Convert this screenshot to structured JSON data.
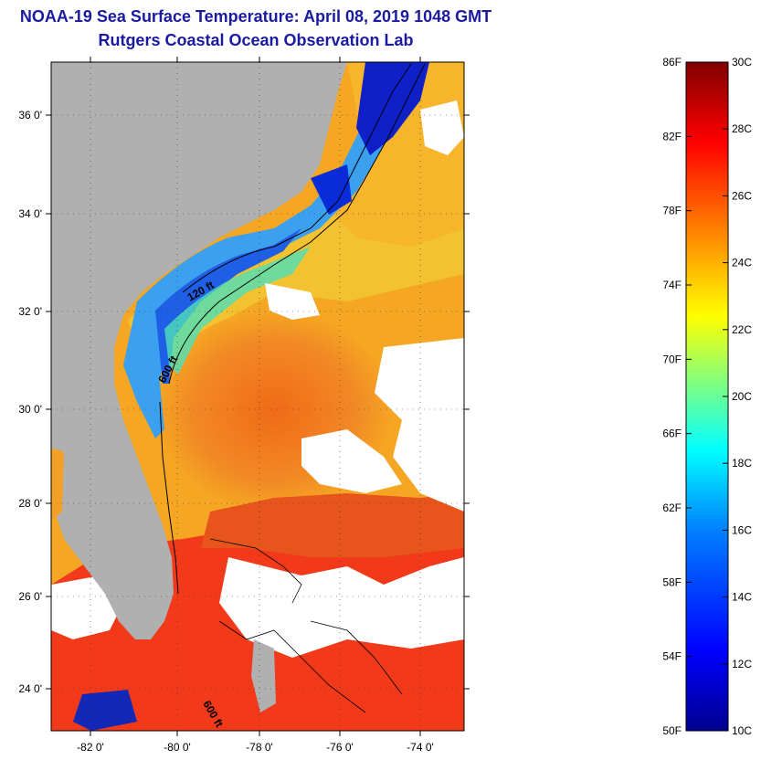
{
  "title_line1": "NOAA-19 Sea Surface Temperature:  April 08, 2019 1048 GMT",
  "title_line2": "Rutgers Coastal Ocean Observation Lab",
  "lat_labels": [
    "36 0'",
    "34 0'",
    "32 0'",
    "30 0'",
    "28 0'",
    "26 0'",
    "24 0'"
  ],
  "lon_labels": [
    "-82 0'",
    "-80 0'",
    "-78 0'",
    "-76 0'",
    "-74 0'"
  ],
  "contour_labels": [
    "120 ft",
    "600 ft",
    "600 ft"
  ],
  "colorbar": {
    "f_labels": [
      "86F",
      "82F",
      "78F",
      "74F",
      "70F",
      "66F",
      "62F",
      "58F",
      "54F",
      "50F"
    ],
    "c_labels": [
      "30C",
      "28C",
      "26C",
      "24C",
      "22C",
      "20C",
      "18C",
      "16C",
      "14C",
      "12C",
      "10C"
    ],
    "colors": [
      "#00008f",
      "#0000ff",
      "#0080ff",
      "#00ffff",
      "#80ff80",
      "#ffff00",
      "#ff8000",
      "#ff0000",
      "#800000"
    ]
  },
  "colors": {
    "land": "#b0b0b0",
    "cloud": "#ffffff",
    "title": "#1b1ba0",
    "warm": "#f07a1e",
    "orange": "#f5a623"
  }
}
